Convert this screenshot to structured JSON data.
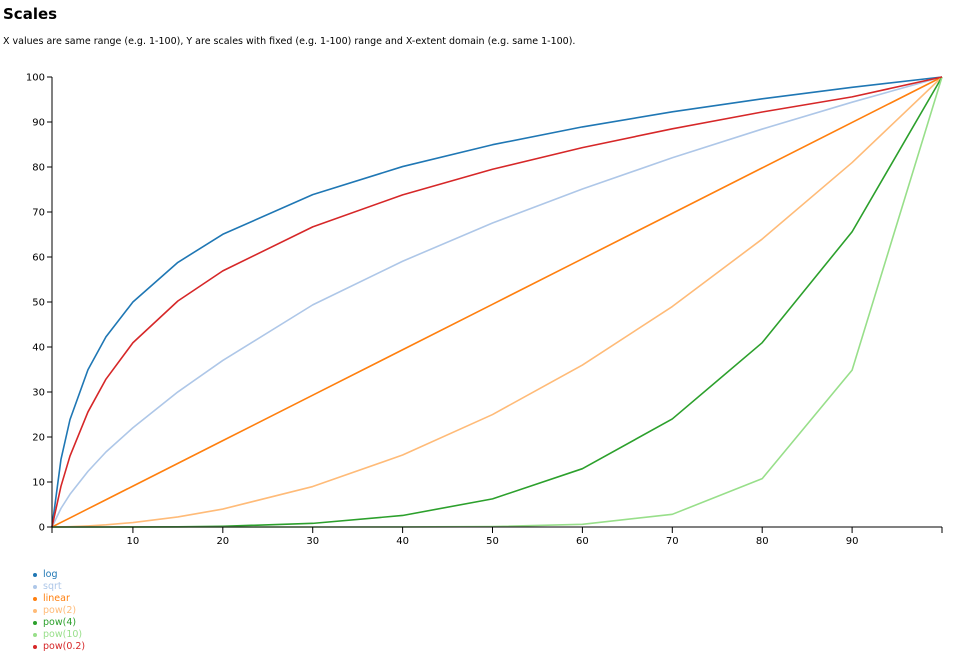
{
  "page": {
    "title": "Scales",
    "subtitle": "X values are same range (e.g. 1-100), Y are scales with fixed (e.g. 1-100) range and X-extent domain (e.g. same 1-100)."
  },
  "chart_data": {
    "type": "line",
    "title": "",
    "xlabel": "",
    "ylabel": "",
    "xlim": [
      1,
      100
    ],
    "ylim": [
      0,
      100
    ],
    "x_ticks": [
      10,
      20,
      30,
      40,
      50,
      60,
      70,
      80,
      90
    ],
    "y_ticks": [
      0,
      10,
      20,
      30,
      40,
      50,
      60,
      70,
      80,
      90,
      100
    ],
    "grid": false,
    "legend_position": "bottom-left",
    "x": [
      1,
      2,
      3,
      5,
      7,
      10,
      15,
      20,
      30,
      40,
      50,
      60,
      70,
      80,
      90,
      100
    ],
    "series": [
      {
        "name": "log",
        "color": "#1f77b4",
        "values": [
          0,
          15.05,
          23.86,
          34.95,
          42.25,
          50,
          58.8,
          65.05,
          73.86,
          80.1,
          84.95,
          88.91,
          92.26,
          95.15,
          97.71,
          100
        ]
      },
      {
        "name": "sqrt",
        "color": "#aec7e8",
        "values": [
          0,
          4.14,
          7.27,
          12.36,
          16.67,
          22.06,
          30.02,
          37.02,
          49.36,
          59.06,
          67.55,
          75.1,
          82.05,
          88.43,
          94.4,
          100
        ]
      },
      {
        "name": "linear",
        "color": "#ff7f0e",
        "values": [
          0,
          1.01,
          2.02,
          4.04,
          6.06,
          9.09,
          14.14,
          19.19,
          29.29,
          39.39,
          49.49,
          59.6,
          69.7,
          79.8,
          89.9,
          100
        ]
      },
      {
        "name": "pow(2)",
        "color": "#ffbb78",
        "values": [
          0,
          0.03,
          0.08,
          0.24,
          0.48,
          0.99,
          2.24,
          3.99,
          8.99,
          15.99,
          24.99,
          35.99,
          48.99,
          63.99,
          80.99,
          100
        ]
      },
      {
        "name": "pow(4)",
        "color": "#2ca02c",
        "values": [
          0,
          0,
          0,
          0,
          0,
          0.01,
          0.05,
          0.16,
          0.81,
          2.56,
          6.25,
          12.96,
          24.01,
          40.96,
          65.61,
          100
        ]
      },
      {
        "name": "pow(10)",
        "color": "#98df8a",
        "values": [
          0,
          0,
          0,
          0,
          0,
          0,
          0,
          0,
          0,
          0.01,
          0.1,
          0.6,
          2.82,
          10.74,
          34.87,
          100
        ]
      },
      {
        "name": "pow(0.2)",
        "color": "#d62728",
        "values": [
          0,
          9.07,
          15.76,
          25.57,
          32.85,
          40.94,
          50.22,
          56.92,
          66.69,
          73.81,
          79.5,
          84.31,
          88.49,
          92.22,
          95.58,
          100
        ]
      }
    ]
  }
}
